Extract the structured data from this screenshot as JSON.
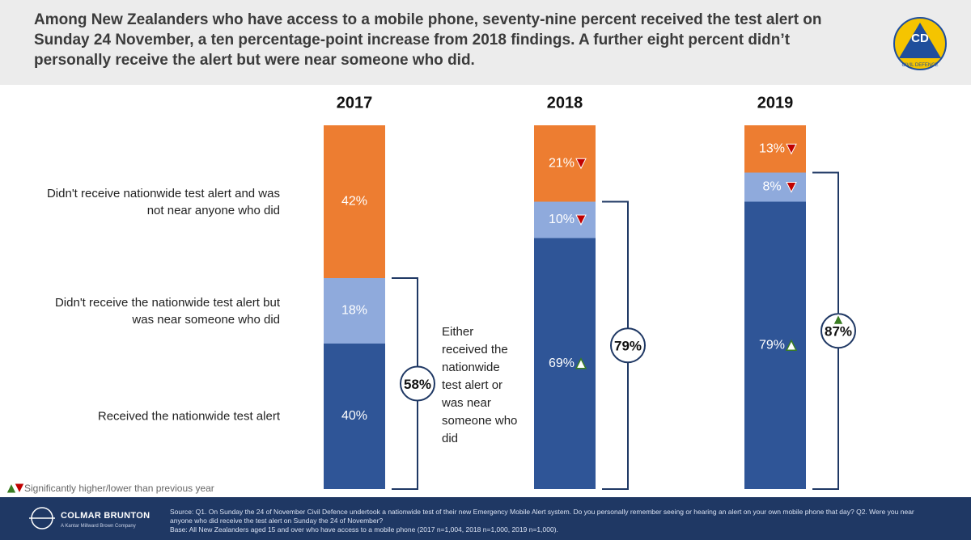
{
  "header": {
    "title": "Among New Zealanders who have access to a mobile phone, seventy-nine percent received the test alert on Sunday 24 November, a ten percentage-point increase from 2018 findings.  A further eight percent didn’t personally receive the alert but were near someone who did.",
    "logo": {
      "initials": "CD",
      "name": "CIVIL DEFENCE"
    }
  },
  "chart_data": {
    "type": "stacked_bar",
    "categories": [
      "2017",
      "2018",
      "2019"
    ],
    "ylim": [
      0,
      100
    ],
    "series": [
      {
        "name": "Received the nationwide test alert",
        "color": "#2f5597",
        "values": [
          40,
          69,
          79
        ],
        "value_labels": [
          "40%",
          "69%",
          "79%"
        ],
        "significance": [
          null,
          "up",
          "up"
        ]
      },
      {
        "name": "Didn't receive the nationwide test alert but was near someone who did",
        "color": "#8faadc",
        "values": [
          18,
          10,
          8
        ],
        "value_labels": [
          "18%",
          "10%",
          "8%"
        ],
        "significance": [
          null,
          "down",
          "down"
        ]
      },
      {
        "name": "Didn't receive nationwide test alert and was not near anyone who did",
        "color": "#ed7d31",
        "values": [
          42,
          21,
          13
        ],
        "value_labels": [
          "42%",
          "21%",
          "13%"
        ],
        "significance": [
          null,
          "down",
          "down"
        ]
      }
    ],
    "totals": {
      "label": "Either received the nationwide test alert or was near someone who did",
      "values": [
        58,
        79,
        87
      ],
      "value_labels": [
        "58%",
        "79%",
        "87%"
      ],
      "significance": [
        null,
        null,
        "up"
      ],
      "color": "#1f3864"
    },
    "significance_legend": {
      "text": "Significantly higher/lower than previous year",
      "up_color": "#3a7d22",
      "down_color": "#c00000"
    }
  },
  "footer": {
    "company": "COLMAR BRUNTON",
    "tagline": "A Kantar Millward Brown Company",
    "source": "Source: Q1. On Sunday the 24 of November Civil Defence undertook a nationwide test of their new Emergency Mobile Alert system. Do you personally remember seeing or hearing an alert on your own mobile phone that day? Q2. Were you near anyone who did receive the test alert on Sunday the 24 of November?",
    "base": "Base: All New Zealanders aged 15 and over who have access to a mobile phone (2017 n=1,004, 2018 n=1,000, 2019 n=1,000)."
  }
}
